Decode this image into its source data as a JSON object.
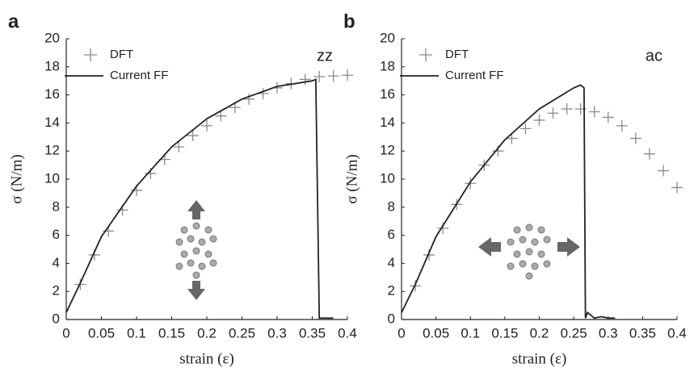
{
  "chart_data": [
    {
      "type": "line",
      "panel_label": "a",
      "annotation": "zz",
      "xlabel": "strain (ε)",
      "ylabel": "σ (N/m)",
      "xlim": [
        0,
        0.4
      ],
      "xticks": [
        0,
        0.05,
        0.1,
        0.15,
        0.2,
        0.25,
        0.3,
        0.35,
        0.4
      ],
      "ylim": [
        0,
        20
      ],
      "yticks": [
        0,
        2,
        4,
        6,
        8,
        10,
        12,
        14,
        16,
        18,
        20
      ],
      "grid": false,
      "legend": "upper left",
      "series": [
        {
          "name": "DFT",
          "color": "#8a8a8a",
          "marker": "+",
          "x": [
            0.02,
            0.04,
            0.06,
            0.08,
            0.1,
            0.12,
            0.14,
            0.16,
            0.18,
            0.2,
            0.22,
            0.24,
            0.26,
            0.28,
            0.3,
            0.32,
            0.34,
            0.36,
            0.38,
            0.4
          ],
          "values": [
            2.5,
            4.6,
            6.3,
            7.8,
            9.2,
            10.4,
            11.4,
            12.3,
            13.1,
            13.8,
            14.5,
            15.1,
            15.7,
            16.1,
            16.5,
            16.8,
            17.1,
            17.3,
            17.35,
            17.4
          ]
        },
        {
          "name": "Current FF",
          "color": "#222222",
          "marker": "line",
          "x": [
            0,
            0.02,
            0.05,
            0.1,
            0.15,
            0.2,
            0.25,
            0.3,
            0.35,
            0.355,
            0.36,
            0.37,
            0.38
          ],
          "values": [
            0.5,
            2.6,
            5.9,
            9.5,
            12.3,
            14.3,
            15.7,
            16.6,
            17.0,
            17.1,
            0.1,
            0.1,
            0.1
          ]
        }
      ]
    },
    {
      "type": "line",
      "panel_label": "b",
      "annotation": "ac",
      "xlabel": "strain (ε)",
      "ylabel": "σ (N/m)",
      "xlim": [
        0,
        0.4
      ],
      "xticks": [
        0,
        0.05,
        0.1,
        0.15,
        0.2,
        0.25,
        0.3,
        0.35,
        0.4
      ],
      "ylim": [
        0,
        20
      ],
      "yticks": [
        0,
        2,
        4,
        6,
        8,
        10,
        12,
        14,
        16,
        18,
        20
      ],
      "grid": false,
      "legend": "upper left",
      "series": [
        {
          "name": "DFT",
          "color": "#8a8a8a",
          "marker": "+",
          "x": [
            0.02,
            0.04,
            0.06,
            0.08,
            0.1,
            0.12,
            0.14,
            0.16,
            0.18,
            0.2,
            0.22,
            0.24,
            0.26,
            0.28,
            0.3,
            0.32,
            0.34,
            0.36,
            0.38,
            0.4
          ],
          "values": [
            2.4,
            4.6,
            6.5,
            8.2,
            9.7,
            11,
            12,
            12.9,
            13.6,
            14.2,
            14.7,
            15,
            15,
            14.8,
            14.4,
            13.8,
            12.9,
            11.8,
            10.6,
            9.4
          ]
        },
        {
          "name": "Current FF",
          "color": "#222222",
          "marker": "line",
          "x": [
            0,
            0.02,
            0.05,
            0.1,
            0.15,
            0.2,
            0.25,
            0.26,
            0.265,
            0.267,
            0.27,
            0.28,
            0.29,
            0.3,
            0.31
          ],
          "values": [
            0.5,
            2.5,
            5.9,
            9.8,
            12.8,
            15,
            16.5,
            16.7,
            16.5,
            0.1,
            0.5,
            0.1,
            0.2,
            0.1,
            0.1
          ]
        }
      ]
    }
  ]
}
